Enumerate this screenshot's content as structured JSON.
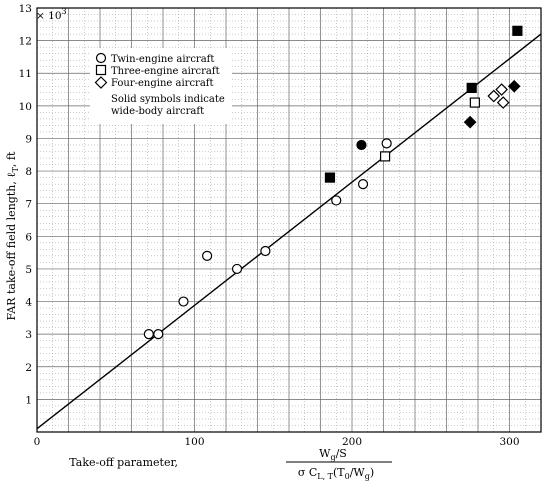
{
  "chart_data": {
    "type": "scatter",
    "title": "",
    "xlabel": "Take-off parameter,",
    "xlabel_fraction": {
      "numerator_main": "W",
      "numerator_sub": "g",
      "numerator_rest": "/S",
      "denominator_main": "σ C",
      "denominator_sub": "L, T",
      "denominator_rest_1": "(T",
      "denominator_sub_2": "0",
      "denominator_rest_2": "/W",
      "denominator_sub_3": "g",
      "denominator_rest_3": ")"
    },
    "ylabel": "FAR take-off field length, ℓ",
    "ylabel_sub": "T",
    "ylabel_unit": ", ft",
    "y_multiplier": "× 10",
    "y_multiplier_exp": "3",
    "xlim": [
      0,
      320
    ],
    "ylim": [
      0,
      13
    ],
    "x_ticks": [
      0,
      100,
      200,
      300
    ],
    "y_ticks": [
      1,
      2,
      3,
      4,
      5,
      6,
      7,
      8,
      9,
      10,
      11,
      12,
      13
    ],
    "grid": true,
    "legend_position": "top-left",
    "legend": [
      {
        "label": "Twin-engine aircraft",
        "marker": "circle"
      },
      {
        "label": "Three-engine aircraft",
        "marker": "square"
      },
      {
        "label": "Four-engine aircraft",
        "marker": "diamond"
      }
    ],
    "legend_note": [
      "Solid symbols indicate",
      "wide-body aircraft"
    ],
    "fit_line": {
      "x": [
        0,
        320
      ],
      "y": [
        0.1,
        12.2
      ]
    },
    "series": [
      {
        "marker": "circle",
        "filled": false,
        "points": [
          [
            71,
            3.0
          ],
          [
            77,
            3.0
          ],
          [
            93,
            4.0
          ],
          [
            108,
            5.4
          ],
          [
            127,
            5.0
          ],
          [
            145,
            5.55
          ],
          [
            190,
            7.1
          ],
          [
            207,
            7.6
          ],
          [
            222,
            8.85
          ]
        ]
      },
      {
        "marker": "circle",
        "filled": true,
        "points": [
          [
            206,
            8.8
          ]
        ]
      },
      {
        "marker": "square",
        "filled": false,
        "points": [
          [
            221,
            8.45
          ],
          [
            278,
            10.1
          ]
        ]
      },
      {
        "marker": "square",
        "filled": true,
        "points": [
          [
            186,
            7.8
          ],
          [
            276,
            10.55
          ],
          [
            305,
            12.3
          ]
        ]
      },
      {
        "marker": "diamond",
        "filled": false,
        "points": [
          [
            290,
            10.3
          ],
          [
            295,
            10.5
          ],
          [
            296,
            10.1
          ]
        ]
      },
      {
        "marker": "diamond",
        "filled": true,
        "points": [
          [
            275,
            9.5
          ],
          [
            303,
            10.6
          ]
        ]
      }
    ]
  }
}
